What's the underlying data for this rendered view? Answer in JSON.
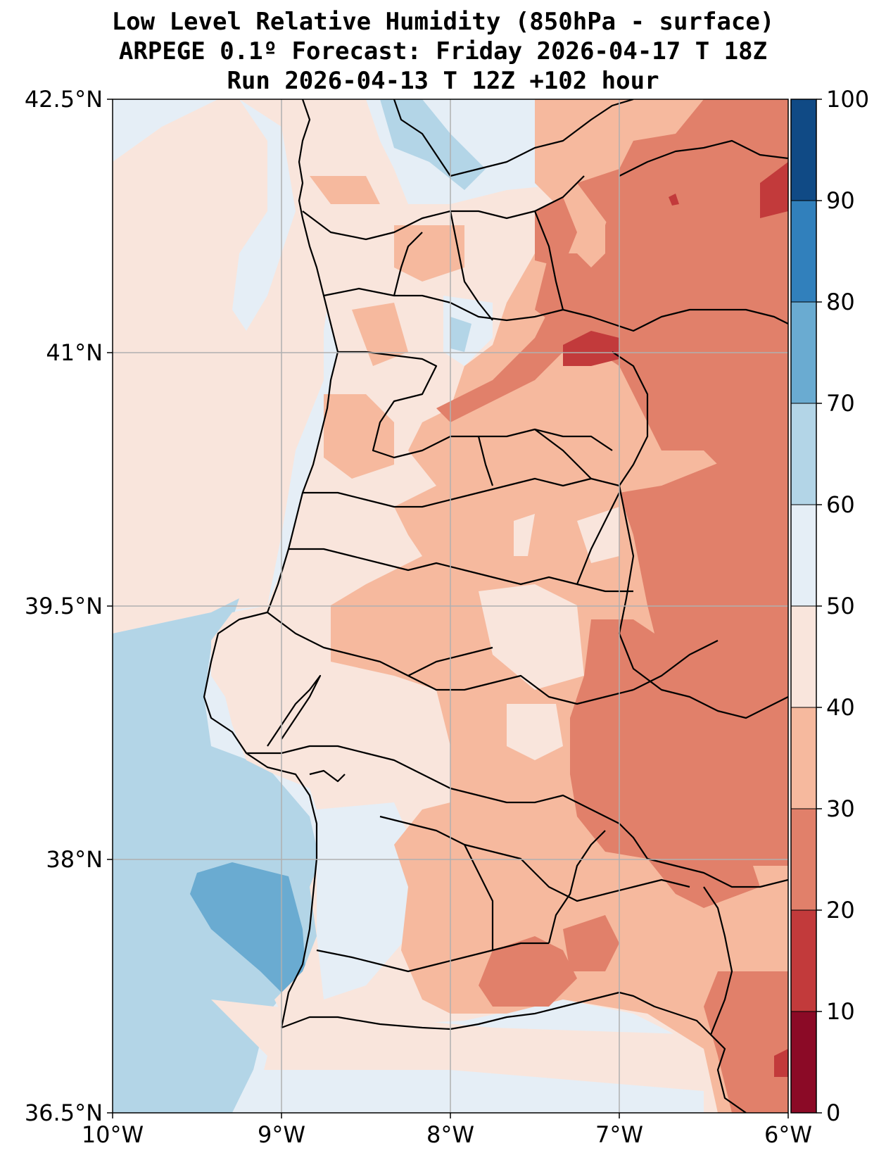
{
  "title": {
    "line1": "Low Level Relative Humidity (850hPa - surface)",
    "line2": "ARPEGE 0.1º Forecast: Friday 2026-04-17 T 18Z",
    "line3": "Run 2026-04-13 T 12Z +102 hour"
  },
  "map": {
    "region": "Portugal",
    "lon_range": [
      -10,
      -6
    ],
    "lat_range": [
      36.5,
      42.5
    ],
    "x_ticks": [
      {
        "value": -10,
        "label": "10°W"
      },
      {
        "value": -9,
        "label": "9°W"
      },
      {
        "value": -8,
        "label": "8°W"
      },
      {
        "value": -7,
        "label": "7°W"
      },
      {
        "value": -6,
        "label": "6°W"
      }
    ],
    "y_ticks": [
      {
        "value": 42.5,
        "label": "42.5°N"
      },
      {
        "value": 41,
        "label": "41°N"
      },
      {
        "value": 39.5,
        "label": "39.5°N"
      },
      {
        "value": 38,
        "label": "38°N"
      },
      {
        "value": 36.5,
        "label": "36.5°N"
      }
    ]
  },
  "colorbar": {
    "levels": [
      0,
      10,
      20,
      30,
      40,
      50,
      60,
      70,
      80,
      90,
      100
    ],
    "labels": [
      "0",
      "10",
      "20",
      "30",
      "40",
      "50",
      "60",
      "70",
      "80",
      "90",
      "100"
    ],
    "colors": [
      "#8b0a26",
      "#c23a3b",
      "#e1806a",
      "#f6b99e",
      "#f9e5dc",
      "#e5eef6",
      "#b3d5e7",
      "#6aabd1",
      "#3180bc",
      "#104a85"
    ]
  },
  "colors": {
    "land_base": "#f9e5dc",
    "sea_light": "#e5eef6",
    "sea_mid": "#b3d5e7",
    "sea_deep": "#6aabd1",
    "grid": "#b0b0b0",
    "border": "#000000"
  }
}
